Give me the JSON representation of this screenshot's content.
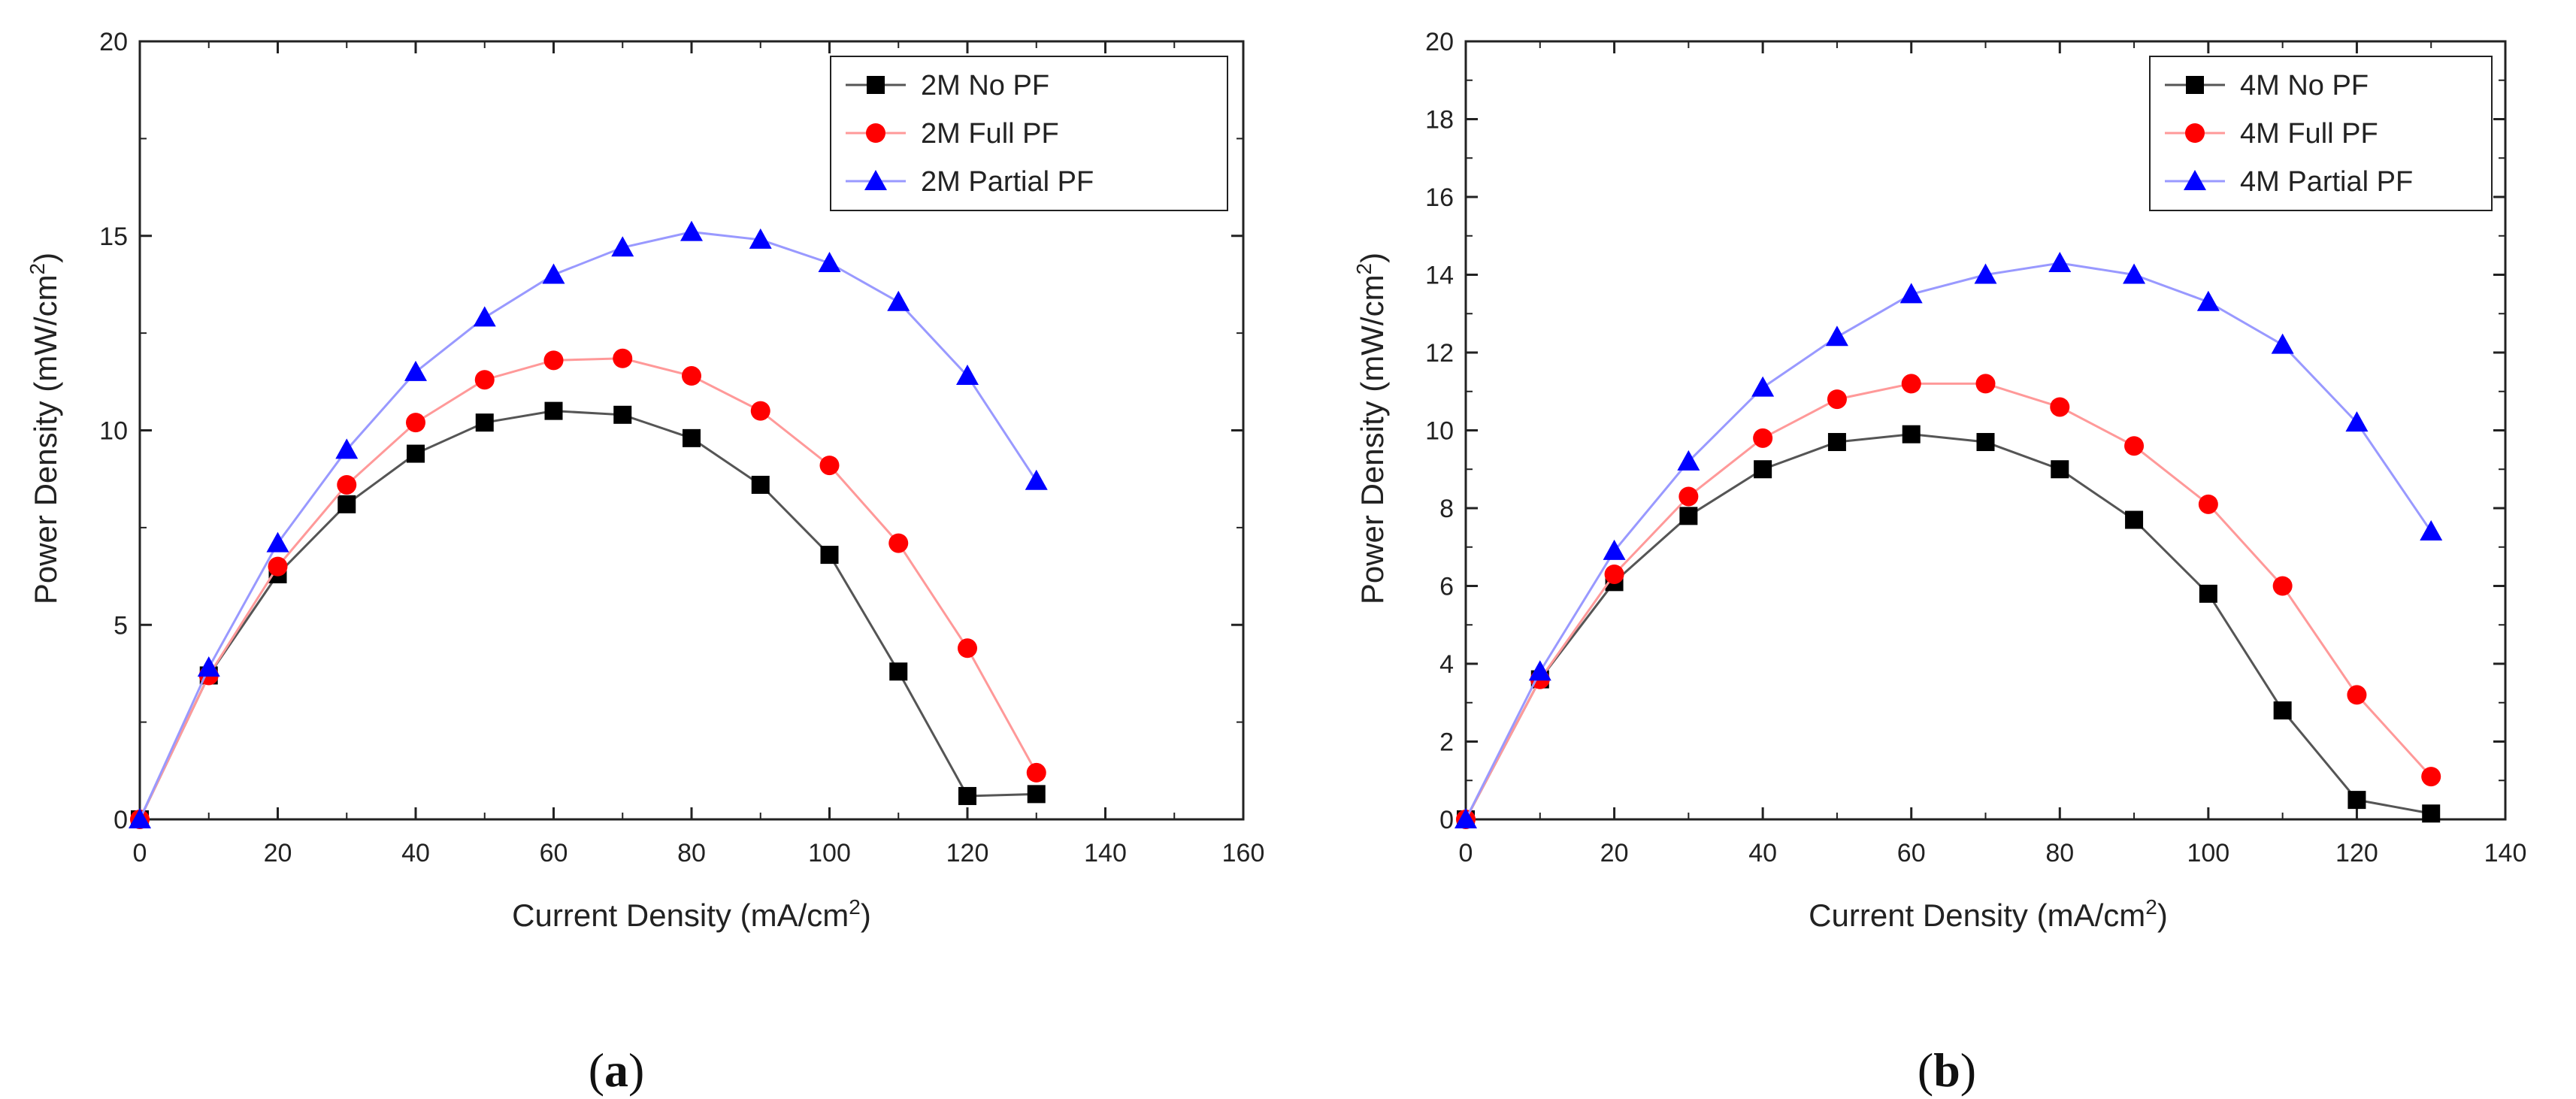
{
  "chart_data": [
    {
      "type": "line",
      "panel_caption": {
        "open": "(",
        "letter": "a",
        "close": ")"
      },
      "xlabel": {
        "text": "Current Density (mA/cm",
        "sup": "2",
        "end": ")"
      },
      "ylabel": {
        "text": "Power Density (mW/cm",
        "sup": "2",
        "end": ")"
      },
      "xlim": [
        0,
        160
      ],
      "ylim": [
        0,
        20
      ],
      "xticks": [
        0,
        20,
        40,
        60,
        80,
        100,
        120,
        140,
        160
      ],
      "yticks": [
        0,
        5,
        10,
        15,
        20
      ],
      "grid": false,
      "legend_position": "top-right",
      "x": [
        0,
        10,
        20,
        30,
        40,
        50,
        60,
        70,
        80,
        90,
        100,
        110,
        120,
        130
      ],
      "series": [
        {
          "name": "2M No PF",
          "marker": "square",
          "marker_color": "#000000",
          "line_color": "#555555",
          "values": [
            0,
            3.7,
            6.3,
            8.1,
            9.4,
            10.2,
            10.5,
            10.4,
            9.8,
            8.6,
            6.8,
            3.8,
            0.6,
            0.65
          ]
        },
        {
          "name": "2M Full PF",
          "marker": "circle",
          "marker_color": "#ff0000",
          "line_color": "#ff9999",
          "values": [
            0,
            3.7,
            6.5,
            8.6,
            10.2,
            11.3,
            11.8,
            11.85,
            11.4,
            10.5,
            9.1,
            7.1,
            4.4,
            1.2
          ]
        },
        {
          "name": "2M Partial PF",
          "marker": "triangle",
          "marker_color": "#0000ff",
          "line_color": "#9999ff",
          "values": [
            0,
            3.9,
            7.1,
            9.5,
            11.5,
            12.9,
            14.0,
            14.7,
            15.1,
            14.9,
            14.3,
            13.3,
            11.4,
            8.7
          ]
        }
      ]
    },
    {
      "type": "line",
      "panel_caption": {
        "open": "(",
        "letter": "b",
        "close": ")"
      },
      "xlabel": {
        "text": "Current Density (mA/cm",
        "sup": "2",
        "end": ")"
      },
      "ylabel": {
        "text": "Power Density (mW/cm",
        "sup": "2",
        "end": ")"
      },
      "xlim": [
        0,
        140
      ],
      "ylim": [
        0,
        20
      ],
      "xticks": [
        0,
        20,
        40,
        60,
        80,
        100,
        120,
        140
      ],
      "yticks": [
        0,
        2,
        4,
        6,
        8,
        10,
        12,
        14,
        16,
        18,
        20
      ],
      "grid": false,
      "legend_position": "top-right",
      "x": [
        0,
        10,
        20,
        30,
        40,
        50,
        60,
        70,
        80,
        90,
        100,
        110,
        120,
        130
      ],
      "series": [
        {
          "name": "4M No PF",
          "marker": "square",
          "marker_color": "#000000",
          "line_color": "#555555",
          "values": [
            0,
            3.6,
            6.1,
            7.8,
            9.0,
            9.7,
            9.9,
            9.7,
            9.0,
            7.7,
            5.8,
            2.8,
            0.5,
            0.15
          ]
        },
        {
          "name": "4M Full PF",
          "marker": "circle",
          "marker_color": "#ff0000",
          "line_color": "#ff9999",
          "values": [
            0,
            3.6,
            6.3,
            8.3,
            9.8,
            10.8,
            11.2,
            11.2,
            10.6,
            9.6,
            8.1,
            6.0,
            3.2,
            1.1
          ]
        },
        {
          "name": "4M Partial PF",
          "marker": "triangle",
          "marker_color": "#0000ff",
          "line_color": "#9999ff",
          "values": [
            0,
            3.8,
            6.9,
            9.2,
            11.1,
            12.4,
            13.5,
            14.0,
            14.3,
            14.0,
            13.3,
            12.2,
            10.2,
            7.4
          ]
        }
      ]
    }
  ]
}
